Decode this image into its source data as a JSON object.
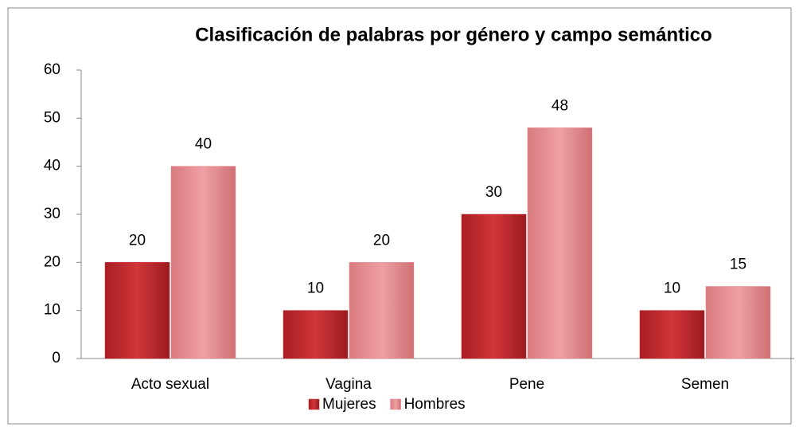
{
  "chart_data": {
    "type": "bar",
    "title": "Clasificación de palabras por género y campo semántico",
    "categories": [
      "Acto sexual",
      "Vagina",
      "Pene",
      "Semen"
    ],
    "series": [
      {
        "name": "Mujeres",
        "color": "#c0282c",
        "values": [
          20,
          10,
          30,
          10
        ]
      },
      {
        "name": "Hombres",
        "color": "#e3898d",
        "values": [
          40,
          20,
          48,
          15
        ]
      }
    ],
    "ylim": [
      0,
      60
    ],
    "yticks": [
      0,
      10,
      20,
      30,
      40,
      50,
      60
    ],
    "grid": false,
    "legend": "bottom"
  }
}
